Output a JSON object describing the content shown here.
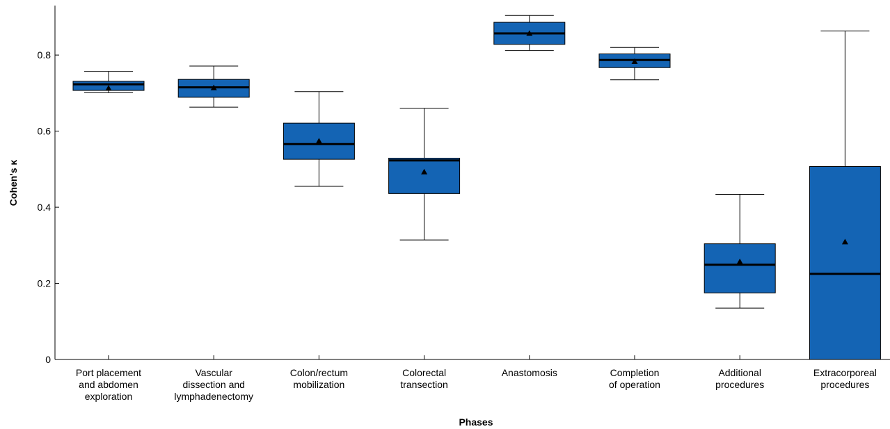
{
  "chart_data": {
    "type": "boxplot",
    "xlabel": "Phases",
    "ylabel": "Cohen's κ",
    "ylim": [
      0,
      0.93
    ],
    "yticks": [
      0,
      0.2,
      0.4,
      0.6,
      0.8
    ],
    "ytick_labels": [
      "0",
      "0.2",
      "0.4",
      "0.6",
      "0.8"
    ],
    "grid": false,
    "box_color": "#1464b4",
    "categories": [
      [
        "Port placement",
        "and abdomen",
        "exploration"
      ],
      [
        "Vascular",
        "dissection and",
        "lymphadenectomy"
      ],
      [
        "Colon/rectum",
        "mobilization"
      ],
      [
        "Colorectal",
        "transection"
      ],
      [
        "Anastomosis"
      ],
      [
        "Completion",
        "of operation"
      ],
      [
        "Additional",
        "procedures"
      ],
      [
        "Extracorporeal",
        "procedures"
      ]
    ],
    "boxes": [
      {
        "whisker_low": 0.701,
        "q1": 0.707,
        "median": 0.723,
        "q3": 0.731,
        "whisker_high": 0.757,
        "mean": 0.712
      },
      {
        "whisker_low": 0.663,
        "q1": 0.689,
        "median": 0.715,
        "q3": 0.736,
        "whisker_high": 0.771,
        "mean": 0.713
      },
      {
        "whisker_low": 0.455,
        "q1": 0.526,
        "median": 0.566,
        "q3": 0.621,
        "whisker_high": 0.704,
        "mean": 0.573
      },
      {
        "whisker_low": 0.314,
        "q1": 0.436,
        "median": 0.523,
        "q3": 0.529,
        "whisker_high": 0.66,
        "mean": 0.492
      },
      {
        "whisker_low": 0.812,
        "q1": 0.828,
        "median": 0.857,
        "q3": 0.886,
        "whisker_high": 0.904,
        "mean": 0.856
      },
      {
        "whisker_low": 0.735,
        "q1": 0.767,
        "median": 0.787,
        "q3": 0.803,
        "whisker_high": 0.82,
        "mean": 0.782
      },
      {
        "whisker_low": 0.135,
        "q1": 0.175,
        "median": 0.249,
        "q3": 0.304,
        "whisker_high": 0.434,
        "mean": 0.256
      },
      {
        "whisker_low": 0.0,
        "q1": 0.0,
        "median": 0.225,
        "q3": 0.507,
        "whisker_high": 0.863,
        "mean": 0.308
      }
    ]
  }
}
